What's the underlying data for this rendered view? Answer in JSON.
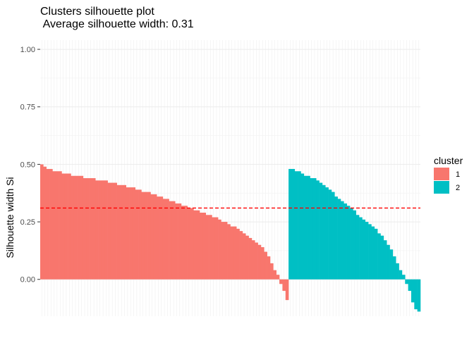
{
  "chart_data": {
    "type": "bar",
    "title_line1": "Clusters silhouette plot",
    "title_line2": " Average silhouette width: 0.31",
    "xlabel": "",
    "ylabel": "Silhouette width Si",
    "ylim": [
      -0.16,
      1.04
    ],
    "yticks": [
      "0.00",
      "0.25",
      "0.50",
      "0.75",
      "1.00"
    ],
    "ytick_values": [
      0.0,
      0.25,
      0.5,
      0.75,
      1.0
    ],
    "grid": true,
    "average_line": {
      "value": 0.31,
      "color": "#ff0000",
      "style": "dashed"
    },
    "legend": {
      "title": "cluster",
      "placement": "right"
    },
    "series": [
      {
        "name": "1",
        "color": "#f8766d",
        "values": [
          0.5,
          0.49,
          0.48,
          0.48,
          0.47,
          0.47,
          0.47,
          0.46,
          0.46,
          0.46,
          0.45,
          0.45,
          0.45,
          0.45,
          0.44,
          0.44,
          0.44,
          0.44,
          0.43,
          0.43,
          0.43,
          0.43,
          0.42,
          0.42,
          0.42,
          0.41,
          0.41,
          0.41,
          0.4,
          0.4,
          0.4,
          0.39,
          0.39,
          0.38,
          0.38,
          0.38,
          0.37,
          0.37,
          0.36,
          0.36,
          0.35,
          0.35,
          0.34,
          0.34,
          0.33,
          0.33,
          0.32,
          0.32,
          0.31,
          0.31,
          0.3,
          0.3,
          0.29,
          0.29,
          0.28,
          0.28,
          0.27,
          0.27,
          0.26,
          0.25,
          0.25,
          0.24,
          0.23,
          0.23,
          0.22,
          0.21,
          0.2,
          0.19,
          0.18,
          0.17,
          0.16,
          0.15,
          0.14,
          0.12,
          0.1,
          0.07,
          0.04,
          0.02,
          -0.02,
          -0.05,
          -0.09
        ]
      },
      {
        "name": "2",
        "color": "#00bfc4",
        "values": [
          0.48,
          0.48,
          0.47,
          0.47,
          0.46,
          0.45,
          0.45,
          0.44,
          0.44,
          0.43,
          0.42,
          0.41,
          0.4,
          0.39,
          0.38,
          0.36,
          0.35,
          0.34,
          0.33,
          0.32,
          0.31,
          0.3,
          0.28,
          0.27,
          0.26,
          0.25,
          0.24,
          0.23,
          0.22,
          0.2,
          0.19,
          0.17,
          0.15,
          0.13,
          0.1,
          0.07,
          0.04,
          0.02,
          -0.02,
          -0.05,
          -0.1,
          -0.13,
          -0.14
        ]
      }
    ]
  }
}
